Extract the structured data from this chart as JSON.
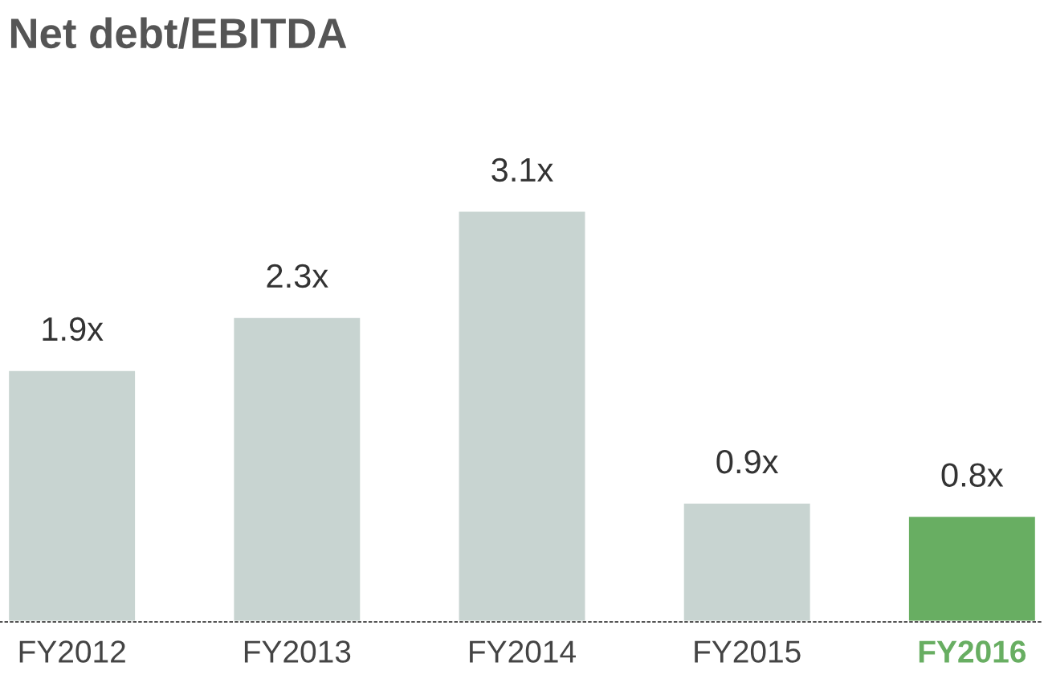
{
  "chart_data": {
    "type": "bar",
    "title": "Net debt/EBITDA",
    "categories": [
      "FY2012",
      "FY2013",
      "FY2014",
      "FY2015",
      "FY2016"
    ],
    "values": [
      1.9,
      2.3,
      3.1,
      0.9,
      0.8
    ],
    "value_labels": [
      "1.9x",
      "2.3x",
      "3.1x",
      "0.9x",
      "0.8x"
    ],
    "colors": [
      "#c8d4d1",
      "#c8d4d1",
      "#c8d4d1",
      "#c8d4d1",
      "#68ae62"
    ],
    "grid": false,
    "legend": false
  }
}
